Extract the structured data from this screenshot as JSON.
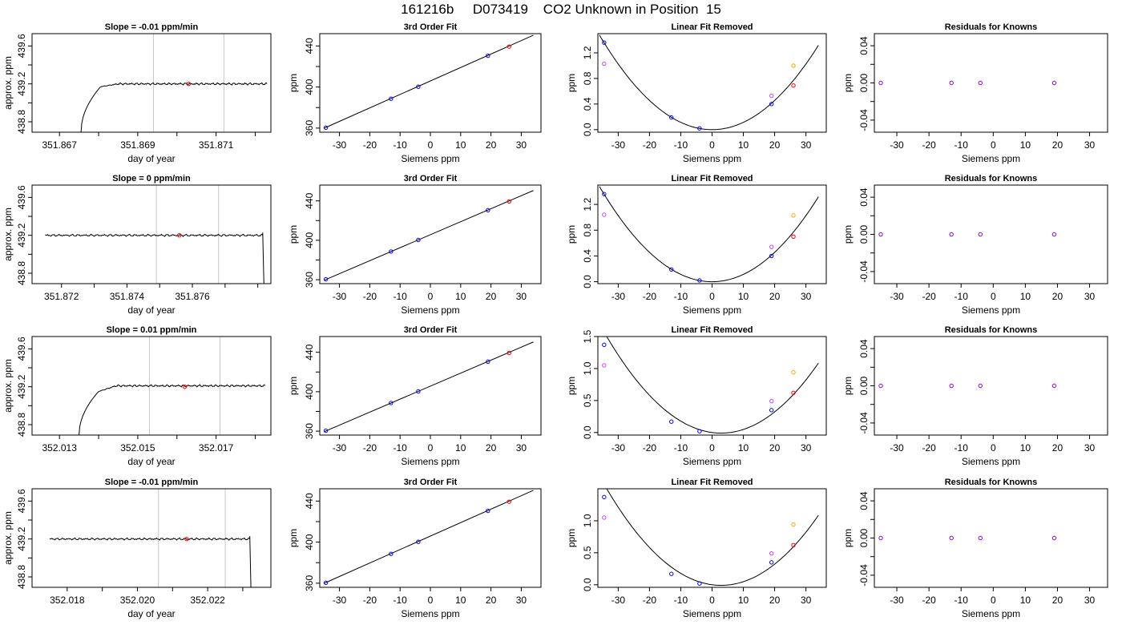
{
  "page": {
    "title": "161216b     D073419    CO2 Unknown in Position  15"
  },
  "colors": {
    "axis": "#000000",
    "curve": "#000000",
    "vline": "#c8c8c8",
    "blue": "#0000ff",
    "red": "#ff0000",
    "purple": "#8000ff",
    "magenta": "#cc44ff",
    "orange": "#ffa500"
  },
  "chart_data": [
    {
      "id": "ts1",
      "type": "line",
      "title": "Slope =  -0.01  ppm/min",
      "xlabel": "day of year",
      "ylabel": "approx. ppm",
      "xlim": [
        351.8663,
        351.8724
      ],
      "ylim": [
        438.69,
        439.73
      ],
      "xticks": [
        351.867,
        351.868,
        351.869,
        351.87,
        351.871,
        351.872
      ],
      "xticklabels": [
        "351.867",
        "",
        "351.869",
        "",
        "351.871",
        ""
      ],
      "yticks": [
        438.8,
        439.0,
        439.2,
        439.4,
        439.6
      ],
      "yticklabels": [
        "438.8",
        "",
        "439.2",
        "",
        "439.6"
      ],
      "vlines": [
        351.8694,
        351.8712
      ],
      "point": {
        "x": 351.8703,
        "y": 439.2,
        "color": "#ff0000"
      },
      "trace": {
        "start": 351.86755,
        "end": 351.8723,
        "rise_start": 438.69,
        "rise_end": 439.17,
        "rise_len": 0.0005,
        "level": 439.2,
        "drop": false
      }
    },
    {
      "id": "fit1",
      "type": "scatter",
      "title": "3rd Order Fit",
      "xlabel": "Siemens ppm",
      "ylabel": "ppm",
      "xlim": [
        -36.5,
        36.5
      ],
      "ylim": [
        356,
        452
      ],
      "xticks": [
        -30,
        -20,
        -10,
        0,
        10,
        20,
        30
      ],
      "xticklabels": [
        "-30",
        "-20",
        "-10",
        "0",
        "10",
        "20",
        "30"
      ],
      "yticks": [
        360,
        380,
        400,
        420,
        440
      ],
      "yticklabels": [
        "360",
        "",
        "400",
        "",
        "440"
      ],
      "line": {
        "x0": -35,
        "y0": 360,
        "x1": 34,
        "y1": 450.5
      },
      "points": [
        {
          "x": -34.5,
          "y": 360.4,
          "color": "#0000ff"
        },
        {
          "x": -13,
          "y": 388.6,
          "color": "#0000ff"
        },
        {
          "x": -4,
          "y": 400.3,
          "color": "#0000ff"
        },
        {
          "x": 19,
          "y": 430.5,
          "color": "#0000ff"
        },
        {
          "x": 26,
          "y": 439.4,
          "color": "#ff0000"
        }
      ]
    },
    {
      "id": "lin1",
      "type": "scatter",
      "title": "Linear Fit Removed",
      "xlabel": "Siemens ppm",
      "ylabel": "ppm",
      "xlim": [
        -36.5,
        36.5
      ],
      "ylim": [
        -0.04,
        1.5
      ],
      "xticks": [
        -30,
        -20,
        -10,
        0,
        10,
        20,
        30
      ],
      "xticklabels": [
        "-30",
        "-20",
        "-10",
        "0",
        "10",
        "20",
        "30"
      ],
      "yticks": [
        0,
        0.4,
        0.8,
        1.2
      ],
      "yticklabels": [
        "0.0",
        "0.4",
        "0.8",
        "1.2"
      ],
      "curve": {
        "a": 0.00114,
        "b": 0
      },
      "points": [
        {
          "x": -34.5,
          "y": 1.36,
          "color": "#0000ff"
        },
        {
          "x": -13,
          "y": 0.19,
          "color": "#0000ff"
        },
        {
          "x": -4,
          "y": 0.02,
          "color": "#0000ff"
        },
        {
          "x": 19,
          "y": 0.4,
          "color": "#0000ff"
        },
        {
          "x": 26,
          "y": 0.69,
          "color": "#ff0000"
        },
        {
          "x": -34.5,
          "y": 1.03,
          "color": "#cc44ff"
        },
        {
          "x": 19,
          "y": 0.53,
          "color": "#cc44ff"
        },
        {
          "x": 26,
          "y": 1.0,
          "color": "#ffa500"
        }
      ]
    },
    {
      "id": "res1",
      "type": "scatter",
      "title": "Residuals for Knowns",
      "xlabel": "Siemens ppm",
      "ylabel": "ppm",
      "xlim": [
        -37,
        35.6
      ],
      "ylim": [
        -0.053,
        0.053
      ],
      "xticks": [
        -30,
        -20,
        -10,
        0,
        10,
        20,
        30
      ],
      "xticklabels": [
        "-30",
        "-20",
        "-10",
        "0",
        "10",
        "20",
        "30"
      ],
      "yticks": [
        -0.04,
        -0.02,
        0,
        0.02,
        0.04
      ],
      "yticklabels": [
        "-0.04",
        "",
        "0.00",
        "",
        "0.04"
      ],
      "points": [
        {
          "x": -35,
          "y": 0,
          "color": "#8000ff"
        },
        {
          "x": -13,
          "y": 0,
          "color": "#8000ff"
        },
        {
          "x": -4,
          "y": 0,
          "color": "#8000ff"
        },
        {
          "x": 19,
          "y": 0,
          "color": "#8000ff"
        }
      ]
    },
    {
      "id": "ts2",
      "type": "line",
      "title": "Slope =  0  ppm/min",
      "xlabel": "day of year",
      "ylabel": "approx. ppm",
      "xlim": [
        351.8711,
        351.8784
      ],
      "ylim": [
        438.69,
        439.73
      ],
      "xticks": [
        351.872,
        351.873,
        351.874,
        351.875,
        351.876,
        351.877,
        351.878
      ],
      "xticklabels": [
        "351.872",
        "",
        "351.874",
        "",
        "351.876",
        "",
        ""
      ],
      "yticks": [
        438.8,
        439.0,
        439.2,
        439.4,
        439.6
      ],
      "yticklabels": [
        "438.8",
        "",
        "439.2",
        "",
        "439.6"
      ],
      "vlines": [
        351.8749,
        351.8768
      ],
      "point": {
        "x": 351.8756,
        "y": 439.2,
        "color": "#ff0000"
      },
      "trace": {
        "start": 351.8715,
        "end": 351.87815,
        "level": 439.2,
        "drop": true
      }
    },
    {
      "id": "fit2",
      "type": "scatter",
      "title": "3rd Order Fit",
      "xlabel": "Siemens ppm",
      "ylabel": "ppm",
      "xlim": [
        -36.5,
        36.5
      ],
      "ylim": [
        356,
        456
      ],
      "xticks": [
        -30,
        -20,
        -10,
        0,
        10,
        20,
        30
      ],
      "xticklabels": [
        "-30",
        "-20",
        "-10",
        "0",
        "10",
        "20",
        "30"
      ],
      "yticks": [
        360,
        380,
        400,
        420,
        440
      ],
      "yticklabels": [
        "360",
        "",
        "400",
        "",
        "440"
      ],
      "line": {
        "x0": -35,
        "y0": 359.5,
        "x1": 34,
        "y1": 450.5
      },
      "points": [
        {
          "x": -34.5,
          "y": 360.4,
          "color": "#0000ff"
        },
        {
          "x": -13,
          "y": 388.6,
          "color": "#0000ff"
        },
        {
          "x": -4,
          "y": 400.3,
          "color": "#0000ff"
        },
        {
          "x": 19,
          "y": 430.5,
          "color": "#0000ff"
        },
        {
          "x": 26,
          "y": 439.4,
          "color": "#ff0000"
        }
      ]
    },
    {
      "id": "lin2",
      "type": "scatter",
      "title": "Linear Fit Removed",
      "xlabel": "Siemens ppm",
      "ylabel": "ppm",
      "xlim": [
        -36.5,
        36.5
      ],
      "ylim": [
        -0.03,
        1.5
      ],
      "xticks": [
        -30,
        -20,
        -10,
        0,
        10,
        20,
        30
      ],
      "xticklabels": [
        "-30",
        "-20",
        "-10",
        "0",
        "10",
        "20",
        "30"
      ],
      "yticks": [
        0,
        0.4,
        0.8,
        1.2
      ],
      "yticklabels": [
        "0.0",
        "0.4",
        "0.8",
        "1.2"
      ],
      "curve": {
        "a": 0.00114,
        "b": 0
      },
      "points": [
        {
          "x": -34.5,
          "y": 1.36,
          "color": "#0000ff"
        },
        {
          "x": -13,
          "y": 0.19,
          "color": "#0000ff"
        },
        {
          "x": -4,
          "y": 0.02,
          "color": "#0000ff"
        },
        {
          "x": 19,
          "y": 0.4,
          "color": "#0000ff"
        },
        {
          "x": 26,
          "y": 0.7,
          "color": "#ff0000"
        },
        {
          "x": -34.5,
          "y": 1.04,
          "color": "#cc44ff"
        },
        {
          "x": 19,
          "y": 0.54,
          "color": "#cc44ff"
        },
        {
          "x": 26,
          "y": 1.03,
          "color": "#ffa500"
        }
      ]
    },
    {
      "id": "res2",
      "type": "scatter",
      "title": "Residuals for Knowns",
      "xlabel": "Siemens ppm",
      "ylabel": "ppm",
      "xlim": [
        -37,
        35.6
      ],
      "ylim": [
        -0.053,
        0.053
      ],
      "xticks": [
        -30,
        -20,
        -10,
        0,
        10,
        20,
        30
      ],
      "xticklabels": [
        "-30",
        "-20",
        "-10",
        "0",
        "10",
        "20",
        "30"
      ],
      "yticks": [
        -0.04,
        -0.02,
        0,
        0.02,
        0.04
      ],
      "yticklabels": [
        "-0.04",
        "",
        "0.00",
        "",
        "0.04"
      ],
      "points": [
        {
          "x": -35,
          "y": 0,
          "color": "#8000ff"
        },
        {
          "x": -13,
          "y": 0,
          "color": "#8000ff"
        },
        {
          "x": -4,
          "y": 0,
          "color": "#8000ff"
        },
        {
          "x": 19,
          "y": 0,
          "color": "#8000ff"
        }
      ]
    },
    {
      "id": "ts3",
      "type": "line",
      "title": "Slope =  0.01  ppm/min",
      "xlabel": "day of year",
      "ylabel": "approx. ppm",
      "xlim": [
        352.0123,
        352.0184
      ],
      "ylim": [
        438.69,
        439.73
      ],
      "xticks": [
        352.013,
        352.014,
        352.015,
        352.016,
        352.017,
        352.018
      ],
      "xticklabels": [
        "352.013",
        "",
        "352.015",
        "",
        "352.017",
        ""
      ],
      "yticks": [
        438.8,
        439.0,
        439.2,
        439.4,
        439.6
      ],
      "yticklabels": [
        "438.8",
        "",
        "439.2",
        "",
        "439.6"
      ],
      "vlines": [
        352.0153,
        352.0171
      ],
      "point": {
        "x": 352.0162,
        "y": 439.2,
        "color": "#ff0000"
      },
      "trace": {
        "start": 352.0135,
        "end": 352.01825,
        "rise_start": 438.69,
        "rise_end": 439.15,
        "rise_len": 0.0005,
        "level": 439.21,
        "drop": false
      }
    },
    {
      "id": "fit3",
      "type": "scatter",
      "title": "3rd Order Fit",
      "xlabel": "Siemens ppm",
      "ylabel": "ppm",
      "xlim": [
        -36.5,
        36.5
      ],
      "ylim": [
        356,
        456
      ],
      "xticks": [
        -30,
        -20,
        -10,
        0,
        10,
        20,
        30
      ],
      "xticklabels": [
        "-30",
        "-20",
        "-10",
        "0",
        "10",
        "20",
        "30"
      ],
      "yticks": [
        360,
        380,
        400,
        420,
        440
      ],
      "yticklabels": [
        "360",
        "",
        "400",
        "",
        "440"
      ],
      "line": {
        "x0": -35,
        "y0": 359.5,
        "x1": 34,
        "y1": 450.5
      },
      "points": [
        {
          "x": -34.5,
          "y": 360.4,
          "color": "#0000ff"
        },
        {
          "x": -13,
          "y": 388.6,
          "color": "#0000ff"
        },
        {
          "x": -4,
          "y": 400.3,
          "color": "#0000ff"
        },
        {
          "x": 19,
          "y": 430.5,
          "color": "#0000ff"
        },
        {
          "x": 26,
          "y": 439.4,
          "color": "#ff0000"
        }
      ]
    },
    {
      "id": "lin3",
      "type": "scatter",
      "title": "Linear Fit Removed",
      "xlabel": "Siemens ppm",
      "ylabel": "ppm",
      "xlim": [
        -36.5,
        36.5
      ],
      "ylim": [
        -0.04,
        1.5
      ],
      "xticks": [
        -30,
        -20,
        -10,
        0,
        10,
        20,
        30
      ],
      "xticklabels": [
        "-30",
        "-20",
        "-10",
        "0",
        "10",
        "20",
        "30"
      ],
      "yticks": [
        0,
        0.5,
        1.0,
        1.5
      ],
      "yticklabels": [
        "0.0",
        "0.5",
        "1.0",
        "1.5"
      ],
      "curve": {
        "a": 0.00113,
        "b": -0.0065
      },
      "points": [
        {
          "x": -34.5,
          "y": 1.37,
          "color": "#0000ff"
        },
        {
          "x": -13,
          "y": 0.17,
          "color": "#0000ff"
        },
        {
          "x": -4,
          "y": 0.02,
          "color": "#0000ff"
        },
        {
          "x": 19,
          "y": 0.35,
          "color": "#0000ff"
        },
        {
          "x": 26,
          "y": 0.62,
          "color": "#ff0000"
        },
        {
          "x": -34.5,
          "y": 1.05,
          "color": "#cc44ff"
        },
        {
          "x": 19,
          "y": 0.49,
          "color": "#cc44ff"
        },
        {
          "x": 26,
          "y": 0.94,
          "color": "#ffa500"
        }
      ]
    },
    {
      "id": "res3",
      "type": "scatter",
      "title": "Residuals for Knowns",
      "xlabel": "Siemens ppm",
      "ylabel": "ppm",
      "xlim": [
        -37,
        35.6
      ],
      "ylim": [
        -0.053,
        0.053
      ],
      "xticks": [
        -30,
        -20,
        -10,
        0,
        10,
        20,
        30
      ],
      "xticklabels": [
        "-30",
        "-20",
        "-10",
        "0",
        "10",
        "20",
        "30"
      ],
      "yticks": [
        -0.04,
        -0.02,
        0,
        0.02,
        0.04
      ],
      "yticklabels": [
        "-0.04",
        "",
        "0.00",
        "",
        "0.04"
      ],
      "points": [
        {
          "x": -35,
          "y": 0,
          "color": "#8000ff"
        },
        {
          "x": -13,
          "y": 0,
          "color": "#8000ff"
        },
        {
          "x": -4,
          "y": 0,
          "color": "#8000ff"
        },
        {
          "x": 19,
          "y": 0,
          "color": "#8000ff"
        }
      ]
    },
    {
      "id": "ts4",
      "type": "line",
      "title": "Slope =  -0.01  ppm/min",
      "xlabel": "day of year",
      "ylabel": "approx. ppm",
      "xlim": [
        352.017,
        352.0238
      ],
      "ylim": [
        438.69,
        439.73
      ],
      "xticks": [
        352.018,
        352.019,
        352.02,
        352.021,
        352.022,
        352.023
      ],
      "xticklabels": [
        "352.018",
        "",
        "352.020",
        "",
        "352.022",
        ""
      ],
      "yticks": [
        438.8,
        439.0,
        439.2,
        439.4,
        439.6
      ],
      "yticklabels": [
        "438.8",
        "",
        "439.2",
        "",
        "439.6"
      ],
      "vlines": [
        352.0206,
        352.0225
      ],
      "point": {
        "x": 352.0214,
        "y": 439.2,
        "color": "#ff0000"
      },
      "trace": {
        "start": 352.0175,
        "end": 352.0232,
        "level": 439.2,
        "drop": true
      }
    },
    {
      "id": "fit4",
      "type": "scatter",
      "title": "3rd Order Fit",
      "xlabel": "Siemens ppm",
      "ylabel": "ppm",
      "xlim": [
        -36.5,
        36.5
      ],
      "ylim": [
        356,
        452
      ],
      "xticks": [
        -30,
        -20,
        -10,
        0,
        10,
        20,
        30
      ],
      "xticklabels": [
        "-30",
        "-20",
        "-10",
        "0",
        "10",
        "20",
        "30"
      ],
      "yticks": [
        360,
        380,
        400,
        420,
        440
      ],
      "yticklabels": [
        "360",
        "",
        "400",
        "",
        "440"
      ],
      "line": {
        "x0": -35,
        "y0": 360,
        "x1": 34,
        "y1": 450.5
      },
      "points": [
        {
          "x": -34.5,
          "y": 360.4,
          "color": "#0000ff"
        },
        {
          "x": -13,
          "y": 388.6,
          "color": "#0000ff"
        },
        {
          "x": -4,
          "y": 400.3,
          "color": "#0000ff"
        },
        {
          "x": 19,
          "y": 430.5,
          "color": "#0000ff"
        },
        {
          "x": 26,
          "y": 439.4,
          "color": "#ff0000"
        }
      ]
    },
    {
      "id": "lin4",
      "type": "scatter",
      "title": "Linear Fit Removed",
      "xlabel": "Siemens ppm",
      "ylabel": "ppm",
      "xlim": [
        -36.5,
        36.5
      ],
      "ylim": [
        -0.04,
        1.5
      ],
      "xticks": [
        -30,
        -20,
        -10,
        0,
        10,
        20,
        30
      ],
      "xticklabels": [
        "-30",
        "-20",
        "-10",
        "0",
        "10",
        "20",
        "30"
      ],
      "yticks": [
        0,
        0.5,
        1.0
      ],
      "yticklabels": [
        "0.0",
        "0.5",
        "1.0"
      ],
      "curve": {
        "a": 0.00113,
        "b": -0.0065
      },
      "points": [
        {
          "x": -34.5,
          "y": 1.37,
          "color": "#0000ff"
        },
        {
          "x": -13,
          "y": 0.17,
          "color": "#0000ff"
        },
        {
          "x": -4,
          "y": 0.02,
          "color": "#0000ff"
        },
        {
          "x": 19,
          "y": 0.35,
          "color": "#0000ff"
        },
        {
          "x": 26,
          "y": 0.62,
          "color": "#ff0000"
        },
        {
          "x": -34.5,
          "y": 1.05,
          "color": "#cc44ff"
        },
        {
          "x": 19,
          "y": 0.49,
          "color": "#cc44ff"
        },
        {
          "x": 26,
          "y": 0.94,
          "color": "#ffa500"
        }
      ]
    },
    {
      "id": "res4",
      "type": "scatter",
      "title": "Residuals for Knowns",
      "xlabel": "Siemens ppm",
      "ylabel": "ppm",
      "xlim": [
        -37,
        35.6
      ],
      "ylim": [
        -0.053,
        0.053
      ],
      "xticks": [
        -30,
        -20,
        -10,
        0,
        10,
        20,
        30
      ],
      "xticklabels": [
        "-30",
        "-20",
        "-10",
        "0",
        "10",
        "20",
        "30"
      ],
      "yticks": [
        -0.04,
        -0.02,
        0,
        0.02,
        0.04
      ],
      "yticklabels": [
        "-0.04",
        "",
        "0.00",
        "",
        "0.04"
      ],
      "points": [
        {
          "x": -35,
          "y": 0,
          "color": "#8000ff"
        },
        {
          "x": -13,
          "y": 0,
          "color": "#8000ff"
        },
        {
          "x": -4,
          "y": 0,
          "color": "#8000ff"
        },
        {
          "x": 19,
          "y": 0,
          "color": "#8000ff"
        }
      ]
    }
  ]
}
